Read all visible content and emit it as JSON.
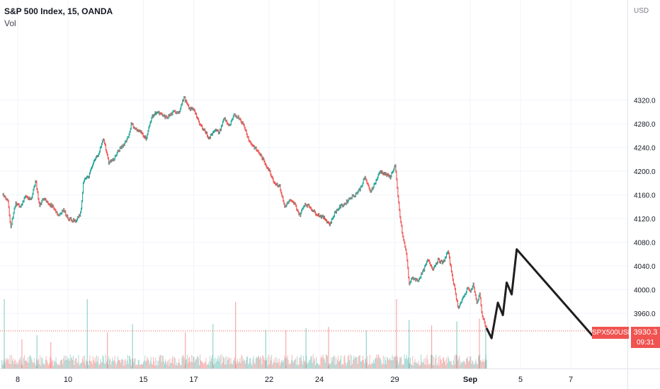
{
  "legend": {
    "title": "S&P 500 Index, 15, OANDA",
    "volume_label": "Vol"
  },
  "axis": {
    "currency": "USD"
  },
  "badge": {
    "symbol": "SPX500USD",
    "price": "3930.3",
    "timer": "09:31"
  },
  "colors": {
    "up": "#26a69a",
    "down": "#ef5350",
    "grid": "#f0f3fa",
    "drawing": "#1f1f1f",
    "badge": "#f05350"
  },
  "chart_data": {
    "type": "line",
    "title": "S&P 500 Index, 15, OANDA",
    "ylabel": "USD",
    "ylim": [
      3920,
      4342
    ],
    "y_ticks": [
      3960,
      4000,
      4040,
      4080,
      4120,
      4160,
      4200,
      4240,
      4280,
      4320
    ],
    "y_tick_labels": [
      "3960.0",
      "4000.0",
      "4040.0",
      "4080.0",
      "4120.0",
      "4160.0",
      "4200.0",
      "4240.0",
      "4280.0",
      "4320.0"
    ],
    "x_ticks": [
      {
        "label": "8",
        "day": 0
      },
      {
        "label": "10",
        "day": 2
      },
      {
        "label": "15",
        "day": 5
      },
      {
        "label": "17",
        "day": 7
      },
      {
        "label": "22",
        "day": 10
      },
      {
        "label": "24",
        "day": 12
      },
      {
        "label": "29",
        "day": 15
      },
      {
        "label": "Sep",
        "day": 18
      },
      {
        "label": "5",
        "day": 20
      },
      {
        "label": "7",
        "day": 22
      }
    ],
    "grid": true,
    "last_price": 3930.3,
    "price_path": [
      [
        -0.6,
        4160
      ],
      [
        -0.4,
        4150
      ],
      [
        -0.3,
        4105
      ],
      [
        -0.1,
        4145
      ],
      [
        0.1,
        4140
      ],
      [
        0.3,
        4160
      ],
      [
        0.5,
        4150
      ],
      [
        0.7,
        4185
      ],
      [
        0.85,
        4140
      ],
      [
        1.0,
        4155
      ],
      [
        1.2,
        4145
      ],
      [
        1.4,
        4140
      ],
      [
        1.6,
        4125
      ],
      [
        1.8,
        4135
      ],
      [
        2.0,
        4120
      ],
      [
        2.3,
        4115
      ],
      [
        2.5,
        4130
      ],
      [
        2.6,
        4185
      ],
      [
        2.8,
        4190
      ],
      [
        3.0,
        4215
      ],
      [
        3.2,
        4230
      ],
      [
        3.4,
        4255
      ],
      [
        3.6,
        4215
      ],
      [
        3.8,
        4220
      ],
      [
        4.0,
        4235
      ],
      [
        4.2,
        4245
      ],
      [
        4.4,
        4260
      ],
      [
        4.5,
        4280
      ],
      [
        4.7,
        4270
      ],
      [
        4.9,
        4265
      ],
      [
        5.1,
        4255
      ],
      [
        5.3,
        4290
      ],
      [
        5.5,
        4300
      ],
      [
        5.7,
        4295
      ],
      [
        5.9,
        4290
      ],
      [
        6.2,
        4300
      ],
      [
        6.4,
        4300
      ],
      [
        6.6,
        4325
      ],
      [
        6.8,
        4305
      ],
      [
        7.0,
        4305
      ],
      [
        7.2,
        4280
      ],
      [
        7.4,
        4270
      ],
      [
        7.6,
        4255
      ],
      [
        7.8,
        4270
      ],
      [
        8.0,
        4265
      ],
      [
        8.2,
        4290
      ],
      [
        8.4,
        4275
      ],
      [
        8.6,
        4295
      ],
      [
        8.8,
        4290
      ],
      [
        9.0,
        4275
      ],
      [
        9.2,
        4250
      ],
      [
        9.4,
        4240
      ],
      [
        9.6,
        4230
      ],
      [
        9.8,
        4215
      ],
      [
        10.0,
        4200
      ],
      [
        10.2,
        4180
      ],
      [
        10.4,
        4175
      ],
      [
        10.6,
        4140
      ],
      [
        10.8,
        4150
      ],
      [
        11.0,
        4145
      ],
      [
        11.2,
        4125
      ],
      [
        11.4,
        4145
      ],
      [
        11.6,
        4140
      ],
      [
        11.8,
        4130
      ],
      [
        12.0,
        4125
      ],
      [
        12.2,
        4120
      ],
      [
        12.4,
        4110
      ],
      [
        12.6,
        4130
      ],
      [
        12.8,
        4140
      ],
      [
        13.0,
        4145
      ],
      [
        13.2,
        4155
      ],
      [
        13.4,
        4160
      ],
      [
        13.6,
        4170
      ],
      [
        13.8,
        4190
      ],
      [
        14.0,
        4165
      ],
      [
        14.2,
        4180
      ],
      [
        14.4,
        4200
      ],
      [
        14.6,
        4195
      ],
      [
        14.8,
        4190
      ],
      [
        15.0,
        4210
      ],
      [
        15.1,
        4160
      ],
      [
        15.2,
        4120
      ],
      [
        15.3,
        4090
      ],
      [
        15.45,
        4060
      ],
      [
        15.55,
        4010
      ],
      [
        15.7,
        4020
      ],
      [
        15.9,
        4015
      ],
      [
        16.1,
        4030
      ],
      [
        16.3,
        4050
      ],
      [
        16.5,
        4035
      ],
      [
        16.7,
        4050
      ],
      [
        16.9,
        4045
      ],
      [
        17.1,
        4065
      ],
      [
        17.2,
        4040
      ],
      [
        17.35,
        4005
      ],
      [
        17.5,
        3970
      ],
      [
        17.7,
        3985
      ],
      [
        17.9,
        4005
      ],
      [
        18.0,
        3995
      ],
      [
        18.1,
        4010
      ],
      [
        18.25,
        3975
      ],
      [
        18.35,
        3995
      ],
      [
        18.45,
        3960
      ],
      [
        18.55,
        3945
      ],
      [
        18.65,
        3930
      ]
    ],
    "volume_ylim": [
      0,
      100
    ],
    "volume_spikes": [
      {
        "day": -0.55,
        "value": 100
      },
      {
        "day": 0.15,
        "value": 42
      },
      {
        "day": 0.75,
        "value": 48
      },
      {
        "day": 1.3,
        "value": 38
      },
      {
        "day": 2.75,
        "value": 100
      },
      {
        "day": 3.55,
        "value": 52
      },
      {
        "day": 4.55,
        "value": 64
      },
      {
        "day": 6.65,
        "value": 52
      },
      {
        "day": 7.75,
        "value": 64
      },
      {
        "day": 8.65,
        "value": 96
      },
      {
        "day": 9.85,
        "value": 56
      },
      {
        "day": 10.65,
        "value": 55
      },
      {
        "day": 11.45,
        "value": 58
      },
      {
        "day": 12.35,
        "value": 60
      },
      {
        "day": 13.85,
        "value": 55
      },
      {
        "day": 15.05,
        "value": 100
      },
      {
        "day": 15.55,
        "value": 70
      },
      {
        "day": 16.45,
        "value": 62
      },
      {
        "day": 17.45,
        "value": 68
      },
      {
        "day": 18.35,
        "value": 72
      },
      {
        "day": 18.6,
        "value": 60
      }
    ],
    "drawing_path": [
      [
        18.65,
        3935
      ],
      [
        18.85,
        3918
      ],
      [
        19.1,
        3978
      ],
      [
        19.3,
        3957
      ],
      [
        19.45,
        4012
      ],
      [
        19.65,
        3992
      ],
      [
        19.85,
        4068
      ],
      [
        22.95,
        3918
      ]
    ]
  }
}
